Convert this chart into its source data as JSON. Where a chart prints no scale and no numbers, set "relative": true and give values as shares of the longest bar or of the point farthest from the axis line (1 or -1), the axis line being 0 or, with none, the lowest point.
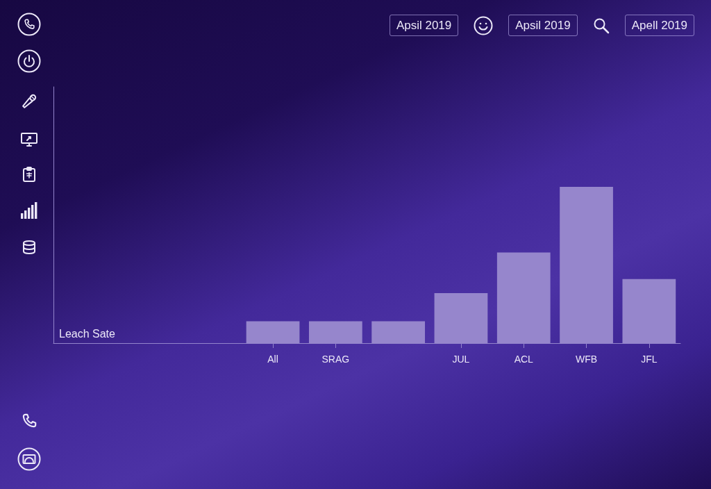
{
  "chart_data": {
    "type": "bar",
    "relative": true,
    "annotations": [
      "Leach Sate",
      "Apsil 2019",
      "Apsil 2019",
      "Apell 2019"
    ],
    "categories": [
      null,
      null,
      null,
      "All",
      "SRAG",
      null,
      "JUL",
      "ACL",
      "WFB",
      "JFL"
    ],
    "values": [
      null,
      null,
      null,
      0.14,
      0.14,
      0.14,
      0.32,
      0.58,
      1,
      0.41
    ],
    "color": "#9686cc"
  }
}
